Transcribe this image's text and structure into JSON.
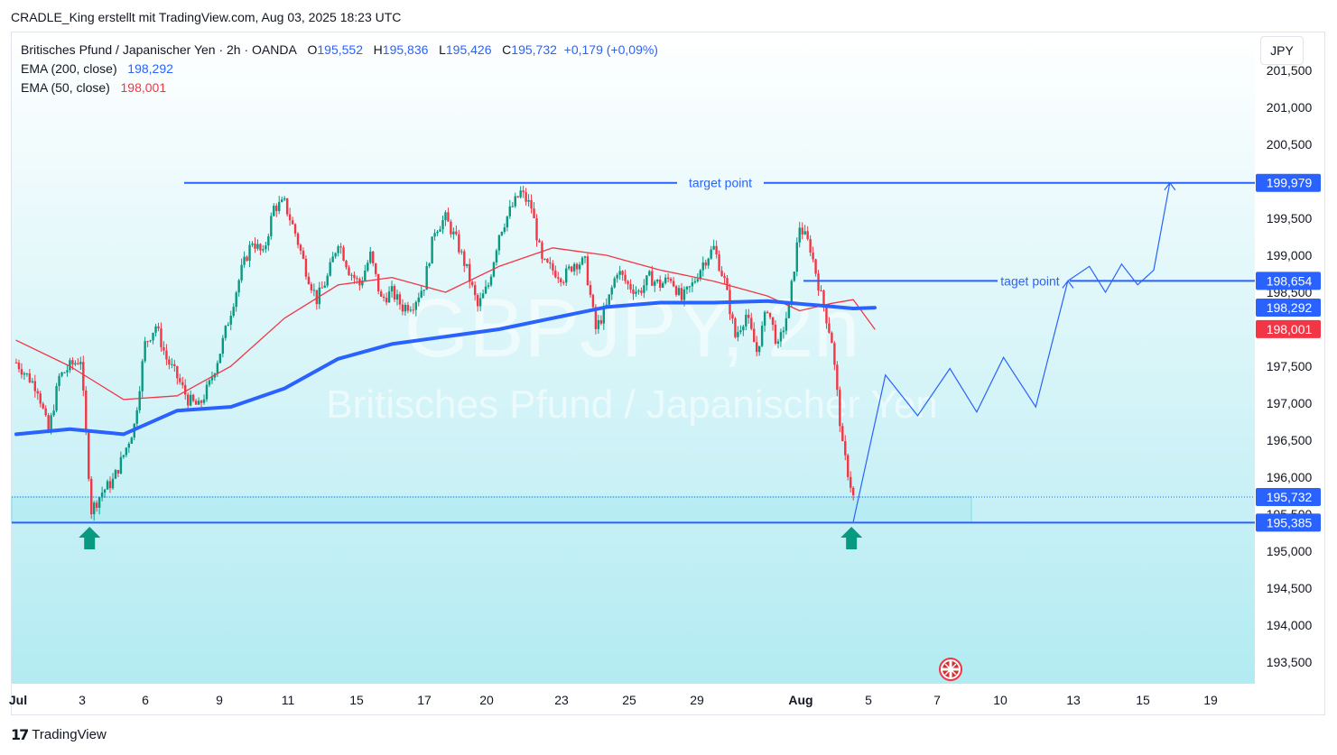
{
  "header": {
    "attribution": "CRADLE_King erstellt mit TradingView.com, Aug 03, 2025 18:23 UTC"
  },
  "legend": {
    "symbol": "Britisches Pfund / Japanischer Yen · 2h · OANDA",
    "o_label": "O",
    "o_value": "195,552",
    "h_label": "H",
    "h_value": "195,836",
    "l_label": "L",
    "l_value": "195,426",
    "c_label": "C",
    "c_value": "195,732",
    "change": "+0,179 (+0,09%)",
    "ema200_label": "EMA (200, close)",
    "ema200_value": "198,292",
    "ema50_label": "EMA (50, close)",
    "ema50_value": "198,001"
  },
  "currency_button": "JPY",
  "watermark": {
    "symbol": "GBPJPY, 2h",
    "name": "Britisches Pfund / Japanischer Yen"
  },
  "footer": {
    "brand": "TradingView",
    "logo": "17"
  },
  "colors": {
    "up": "#089981",
    "down": "#f23645",
    "ema200": "#2962ff",
    "ema50": "#f23645",
    "accent": "#2962ff",
    "zone": "#b2ebf2"
  },
  "chart_data": {
    "type": "candlestick",
    "title": "",
    "ylim": [
      193250,
      201750
    ],
    "y_ticks": [
      "201,500",
      "201,000",
      "200,500",
      "199,500",
      "199,000",
      "198,500",
      "197,500",
      "197,000",
      "196,500",
      "196,000",
      "195,500",
      "195,000",
      "194,500",
      "194,000",
      "193,500"
    ],
    "y_tick_values": [
      201500,
      201000,
      200500,
      199500,
      199000,
      198500,
      197500,
      197000,
      196500,
      196000,
      195500,
      195000,
      194500,
      194000,
      193500
    ],
    "x_ticks": [
      "Jul",
      "3",
      "6",
      "9",
      "11",
      "15",
      "17",
      "20",
      "23",
      "25",
      "29",
      "Aug",
      "5",
      "7",
      "10",
      "13",
      "15",
      "19"
    ],
    "price_labels": [
      {
        "text": "199,979",
        "value": 199979,
        "color": "#2962ff"
      },
      {
        "text": "198,654",
        "value": 198654,
        "color": "#2962ff"
      },
      {
        "text": "198,292",
        "value": 198292,
        "color": "#2962ff"
      },
      {
        "text": "198,001",
        "value": 198001,
        "color": "#f23645"
      },
      {
        "text": "195,732",
        "value": 195732,
        "color": "#2962ff"
      },
      {
        "text": "195,385",
        "value": 195385,
        "color": "#2962ff"
      }
    ],
    "annotations": [
      {
        "text": "target point",
        "level": 199979
      },
      {
        "text": "taget point",
        "level": 198654
      }
    ],
    "support_level": 195385,
    "current_price": 195732,
    "price_path": [
      [
        0,
        197550
      ],
      [
        2,
        197200
      ],
      [
        3,
        196600
      ],
      [
        4,
        197350
      ],
      [
        5,
        197500
      ],
      [
        6,
        197600
      ],
      [
        7,
        195550
      ],
      [
        8,
        195800
      ],
      [
        9,
        195950
      ],
      [
        10,
        196300
      ],
      [
        11,
        196700
      ],
      [
        12,
        197800
      ],
      [
        13,
        198050
      ],
      [
        14,
        197600
      ],
      [
        15,
        197350
      ],
      [
        16,
        197050
      ],
      [
        17,
        196950
      ],
      [
        18,
        197250
      ],
      [
        19,
        197700
      ],
      [
        20,
        198250
      ],
      [
        21,
        198800
      ],
      [
        22,
        199200
      ],
      [
        23,
        199000
      ],
      [
        24,
        199650
      ],
      [
        25,
        199700
      ],
      [
        26,
        199300
      ],
      [
        27,
        198800
      ],
      [
        28,
        198400
      ],
      [
        29,
        198700
      ],
      [
        30,
        199200
      ],
      [
        31,
        198800
      ],
      [
        32,
        198600
      ],
      [
        33,
        199000
      ],
      [
        34,
        198400
      ],
      [
        35,
        198500
      ],
      [
        36,
        198300
      ],
      [
        37,
        198350
      ],
      [
        38,
        198600
      ],
      [
        39,
        199350
      ],
      [
        40,
        199500
      ],
      [
        41,
        199200
      ],
      [
        42,
        198800
      ],
      [
        43,
        198300
      ],
      [
        44,
        198600
      ],
      [
        45,
        199300
      ],
      [
        46,
        199600
      ],
      [
        47,
        199850
      ],
      [
        48,
        199650
      ],
      [
        49,
        198900
      ],
      [
        50,
        198800
      ],
      [
        51,
        198700
      ],
      [
        52,
        198900
      ],
      [
        53,
        198900
      ],
      [
        54,
        198000
      ],
      [
        55,
        198300
      ],
      [
        56,
        198800
      ],
      [
        57,
        198600
      ],
      [
        58,
        198500
      ],
      [
        59,
        198700
      ],
      [
        60,
        198600
      ],
      [
        61,
        198700
      ],
      [
        62,
        198400
      ],
      [
        63,
        198600
      ],
      [
        64,
        198900
      ],
      [
        65,
        199100
      ],
      [
        66,
        198650
      ],
      [
        67,
        197900
      ],
      [
        68,
        198200
      ],
      [
        69,
        197700
      ],
      [
        70,
        198300
      ],
      [
        71,
        197750
      ],
      [
        72,
        198300
      ],
      [
        73,
        199400
      ],
      [
        74,
        199100
      ],
      [
        75,
        198450
      ],
      [
        76,
        197850
      ],
      [
        77,
        196400
      ],
      [
        78,
        195732
      ]
    ],
    "projection_path": [
      [
        78,
        195400
      ],
      [
        81,
        197380
      ],
      [
        84,
        196830
      ],
      [
        87,
        197470
      ],
      [
        89.5,
        196880
      ],
      [
        92,
        197620
      ],
      [
        95,
        196950
      ],
      [
        98,
        198654
      ],
      [
        100,
        198850
      ],
      [
        101.5,
        198500
      ],
      [
        103,
        198880
      ],
      [
        104.5,
        198600
      ],
      [
        106,
        198800
      ],
      [
        107.5,
        199979
      ]
    ],
    "ema200": [
      [
        0,
        196580
      ],
      [
        5,
        196650
      ],
      [
        10,
        196580
      ],
      [
        15,
        196900
      ],
      [
        20,
        196950
      ],
      [
        25,
        197200
      ],
      [
        30,
        197600
      ],
      [
        35,
        197800
      ],
      [
        40,
        197900
      ],
      [
        45,
        198000
      ],
      [
        50,
        198150
      ],
      [
        55,
        198300
      ],
      [
        60,
        198360
      ],
      [
        65,
        198360
      ],
      [
        70,
        198380
      ],
      [
        75,
        198320
      ],
      [
        78,
        198280
      ],
      [
        80,
        198292
      ]
    ],
    "ema50": [
      [
        0,
        197850
      ],
      [
        5,
        197500
      ],
      [
        10,
        197050
      ],
      [
        15,
        197100
      ],
      [
        20,
        197500
      ],
      [
        25,
        198150
      ],
      [
        30,
        198600
      ],
      [
        35,
        198700
      ],
      [
        40,
        198500
      ],
      [
        45,
        198850
      ],
      [
        50,
        199100
      ],
      [
        55,
        199000
      ],
      [
        60,
        198800
      ],
      [
        65,
        198650
      ],
      [
        70,
        198450
      ],
      [
        73,
        198250
      ],
      [
        76,
        198350
      ],
      [
        78,
        198400
      ],
      [
        80,
        198001
      ]
    ]
  }
}
